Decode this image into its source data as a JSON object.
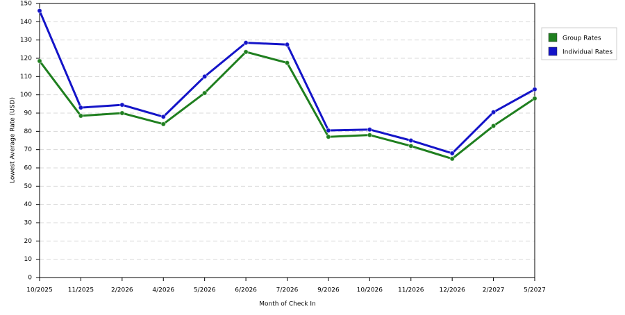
{
  "chart_data": {
    "type": "line",
    "x_label": "Month of Check In",
    "y_label": "Lowest Average Rate (USD)",
    "categories": [
      "10/2025",
      "11/2025",
      "2/2026",
      "4/2026",
      "5/2026",
      "6/2026",
      "7/2026",
      "9/2026",
      "10/2026",
      "11/2026",
      "12/2026",
      "2/2027",
      "5/2027"
    ],
    "series": [
      {
        "name": "Group Rates",
        "color": "#1f7f1f",
        "values": [
          118.5,
          88.5,
          90,
          84,
          101,
          123.5,
          117.5,
          77,
          78,
          72,
          65,
          83,
          98
        ]
      },
      {
        "name": "Individual Rates",
        "color": "#1414c8",
        "values": [
          146,
          93,
          94.5,
          88,
          110,
          128.5,
          127.5,
          80.5,
          81,
          75,
          68,
          90.5,
          103
        ]
      }
    ],
    "ylim": [
      0,
      150
    ],
    "yticks": [
      0,
      10,
      20,
      30,
      40,
      50,
      60,
      70,
      80,
      90,
      100,
      110,
      120,
      130,
      140,
      150
    ],
    "grid": true,
    "legend": "right"
  }
}
